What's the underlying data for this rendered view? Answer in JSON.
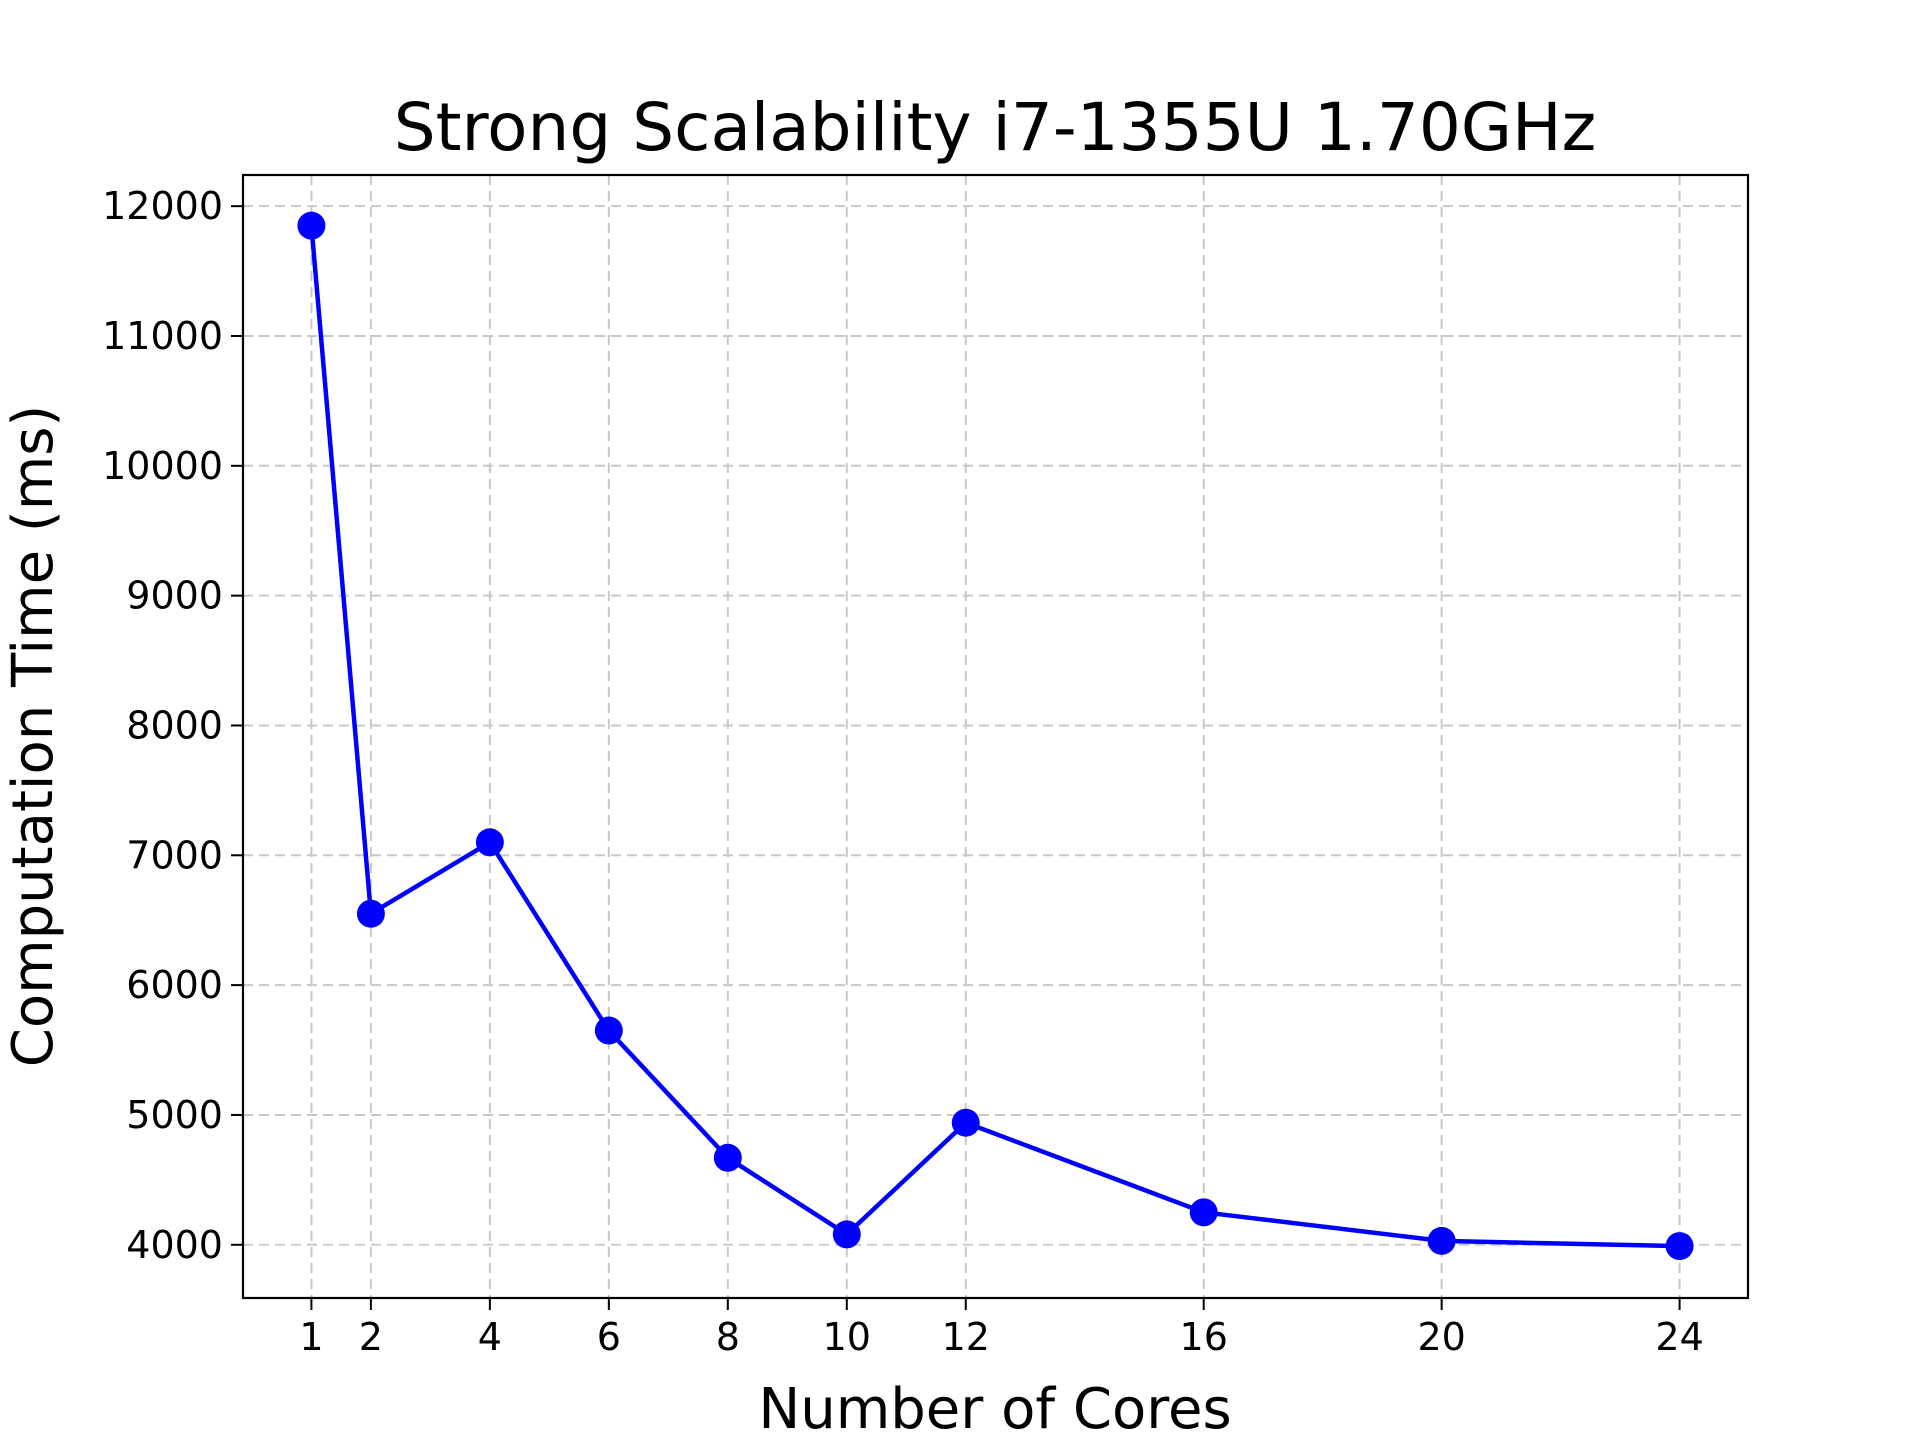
{
  "chart_data": {
    "type": "line",
    "title": "Strong Scalability i7-1355U 1.70GHz",
    "xlabel": "Number of Cores",
    "ylabel": "Computation Time (ms)",
    "x": [
      1,
      2,
      4,
      6,
      8,
      10,
      12,
      16,
      20,
      24
    ],
    "x_tick_labels": [
      "1",
      "2",
      "4",
      "6",
      "8",
      "10",
      "12",
      "16",
      "20",
      "24"
    ],
    "y_ticks": [
      4000,
      5000,
      6000,
      7000,
      8000,
      9000,
      10000,
      11000,
      12000
    ],
    "y_tick_labels": [
      "4000",
      "5000",
      "6000",
      "7000",
      "8000",
      "9000",
      "10000",
      "11000",
      "12000"
    ],
    "series": [
      {
        "values": [
          11850,
          6550,
          7100,
          5650,
          4670,
          4080,
          4940,
          4250,
          4030,
          3990
        ],
        "color": "#0000ff",
        "marker": "circle"
      }
    ],
    "xlim": [
      -0.15,
      25.15
    ],
    "ylim": [
      3590,
      12240
    ],
    "grid": true,
    "grid_style": "dashed",
    "legend": "none"
  }
}
